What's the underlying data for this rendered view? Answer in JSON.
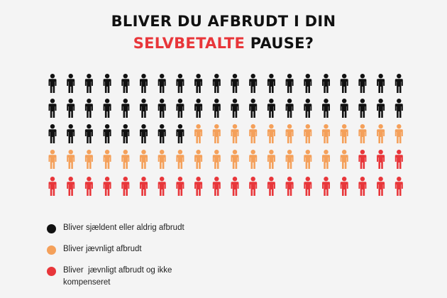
{
  "title": {
    "line1": "BLIVER DU AFBRUDT I DIN",
    "highlight": "SELVBETALTE",
    "line2_rest": " PAUSE?"
  },
  "chart_data": {
    "type": "pictograph",
    "total": 100,
    "series": [
      {
        "value": 48,
        "color": "#111111"
      },
      {
        "value": 29,
        "color": "#f4a05a"
      },
      {
        "value": 23,
        "color": "#e8363a"
      }
    ]
  },
  "legend": [
    {
      "label": "Bliver sjældent eller aldrig afbrudt",
      "color": "#111111"
    },
    {
      "label": "Bliver jævnligt afbrudt",
      "color": "#f4a05a"
    },
    {
      "label": "Bliver  jævnligt afbrudt og ikke kompenseret",
      "color": "#e8363a"
    }
  ]
}
